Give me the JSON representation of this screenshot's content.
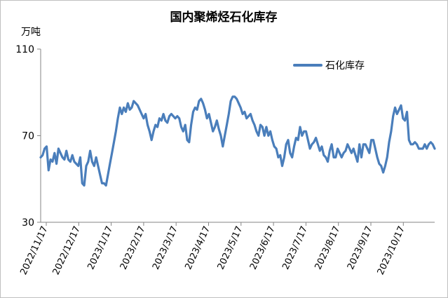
{
  "chart_data": {
    "type": "line",
    "title": "国内聚烯烃石化库存",
    "ylabel": "万吨",
    "xlabel": "",
    "ylim": [
      30,
      110
    ],
    "yticks": [
      30,
      70,
      110
    ],
    "grid": false,
    "legend_position": "top-right",
    "x_tick_labels": [
      "2022/11/17",
      "2022/12/17",
      "2023/1/17",
      "2023/2/17",
      "2023/3/17",
      "2023/4/17",
      "2023/5/17",
      "2023/6/17",
      "2023/7/17",
      "2023/8/17",
      "2023/9/17",
      "2023/10/17"
    ],
    "series": [
      {
        "name": "石化库存",
        "color": "#4a7ebb",
        "values": [
          60,
          61,
          64,
          65,
          54,
          59,
          58,
          62,
          57,
          64,
          62,
          60,
          59,
          63,
          59,
          58,
          61,
          58,
          57,
          56,
          60,
          48,
          47,
          56,
          58,
          63,
          58,
          56,
          60,
          56,
          52,
          48,
          48,
          47,
          52,
          57,
          62,
          67,
          72,
          78,
          83,
          80,
          83,
          81,
          85,
          82,
          83,
          86,
          85,
          84,
          82,
          80,
          78,
          80,
          75,
          72,
          68,
          72,
          75,
          74,
          78,
          77,
          80,
          77,
          76,
          79,
          80,
          79,
          78,
          79,
          78,
          74,
          72,
          75,
          68,
          67,
          75,
          81,
          83,
          82,
          86,
          87,
          85,
          82,
          78,
          80,
          76,
          72,
          74,
          77,
          73,
          70,
          65,
          70,
          75,
          80,
          86,
          88,
          88,
          87,
          85,
          83,
          80,
          81,
          78,
          79,
          80,
          77,
          75,
          72,
          70,
          75,
          74,
          70,
          74,
          70,
          72,
          68,
          65,
          64,
          60,
          61,
          56,
          60,
          66,
          68,
          62,
          60,
          65,
          69,
          68,
          74,
          70,
          72,
          72,
          68,
          64,
          66,
          67,
          69,
          66,
          63,
          65,
          61,
          60,
          58,
          63,
          66,
          60,
          60,
          64,
          62,
          60,
          62,
          63,
          66,
          64,
          62,
          64,
          61,
          58,
          66,
          60,
          66,
          66,
          64,
          62,
          68,
          68,
          64,
          60,
          57,
          56,
          53,
          56,
          60,
          67,
          72,
          79,
          83,
          80,
          82,
          84,
          78,
          77,
          81,
          68,
          66,
          66,
          67,
          66,
          64,
          64,
          64,
          66,
          64,
          66,
          67,
          66,
          64
        ]
      }
    ]
  }
}
